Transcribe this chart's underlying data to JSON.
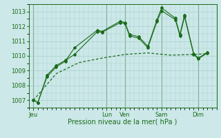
{
  "title": "",
  "xlabel": "Pression niveau de la mer( hPa )",
  "ylabel": "",
  "background_color": "#cce8e8",
  "grid_color": "#aacece",
  "line_color": "#1a6b1a",
  "ylim": [
    1006.5,
    1013.5
  ],
  "yticks": [
    1007,
    1008,
    1009,
    1010,
    1011,
    1012,
    1013
  ],
  "day_labels": [
    "Jeu",
    "Lun",
    "Ven",
    "Sam",
    "Dim"
  ],
  "day_positions": [
    0,
    16,
    20,
    28,
    36
  ],
  "xmin": -1,
  "xmax": 40,
  "series1_x": [
    0,
    1,
    3,
    5,
    7,
    9,
    14,
    15,
    19,
    20,
    21,
    23,
    25,
    27,
    28,
    31,
    32,
    33,
    35,
    36,
    38
  ],
  "series1_y": [
    1007.0,
    1006.85,
    1008.6,
    1009.25,
    1009.65,
    1010.55,
    1011.75,
    1011.65,
    1012.35,
    1012.25,
    1011.45,
    1011.3,
    1010.65,
    1012.45,
    1013.25,
    1012.55,
    1011.45,
    1012.75,
    1010.15,
    1009.85,
    1010.25
  ],
  "series2_x": [
    0,
    1,
    3,
    5,
    7,
    9,
    14,
    15,
    19,
    20,
    21,
    23,
    25,
    27,
    28,
    31,
    32,
    33,
    35,
    36,
    38
  ],
  "series2_y": [
    1007.0,
    1006.85,
    1008.7,
    1009.35,
    1009.7,
    1010.1,
    1011.65,
    1011.6,
    1012.25,
    1012.2,
    1011.35,
    1011.2,
    1010.55,
    1012.35,
    1013.05,
    1012.45,
    1011.35,
    1012.65,
    1010.1,
    1009.8,
    1010.2
  ],
  "series3_x": [
    0,
    5,
    10,
    15,
    20,
    25,
    30,
    35,
    38
  ],
  "series3_y": [
    1007.0,
    1008.8,
    1009.55,
    1009.85,
    1010.1,
    1010.2,
    1010.05,
    1010.1,
    1010.15
  ],
  "vline_color": "#2d6b2d"
}
